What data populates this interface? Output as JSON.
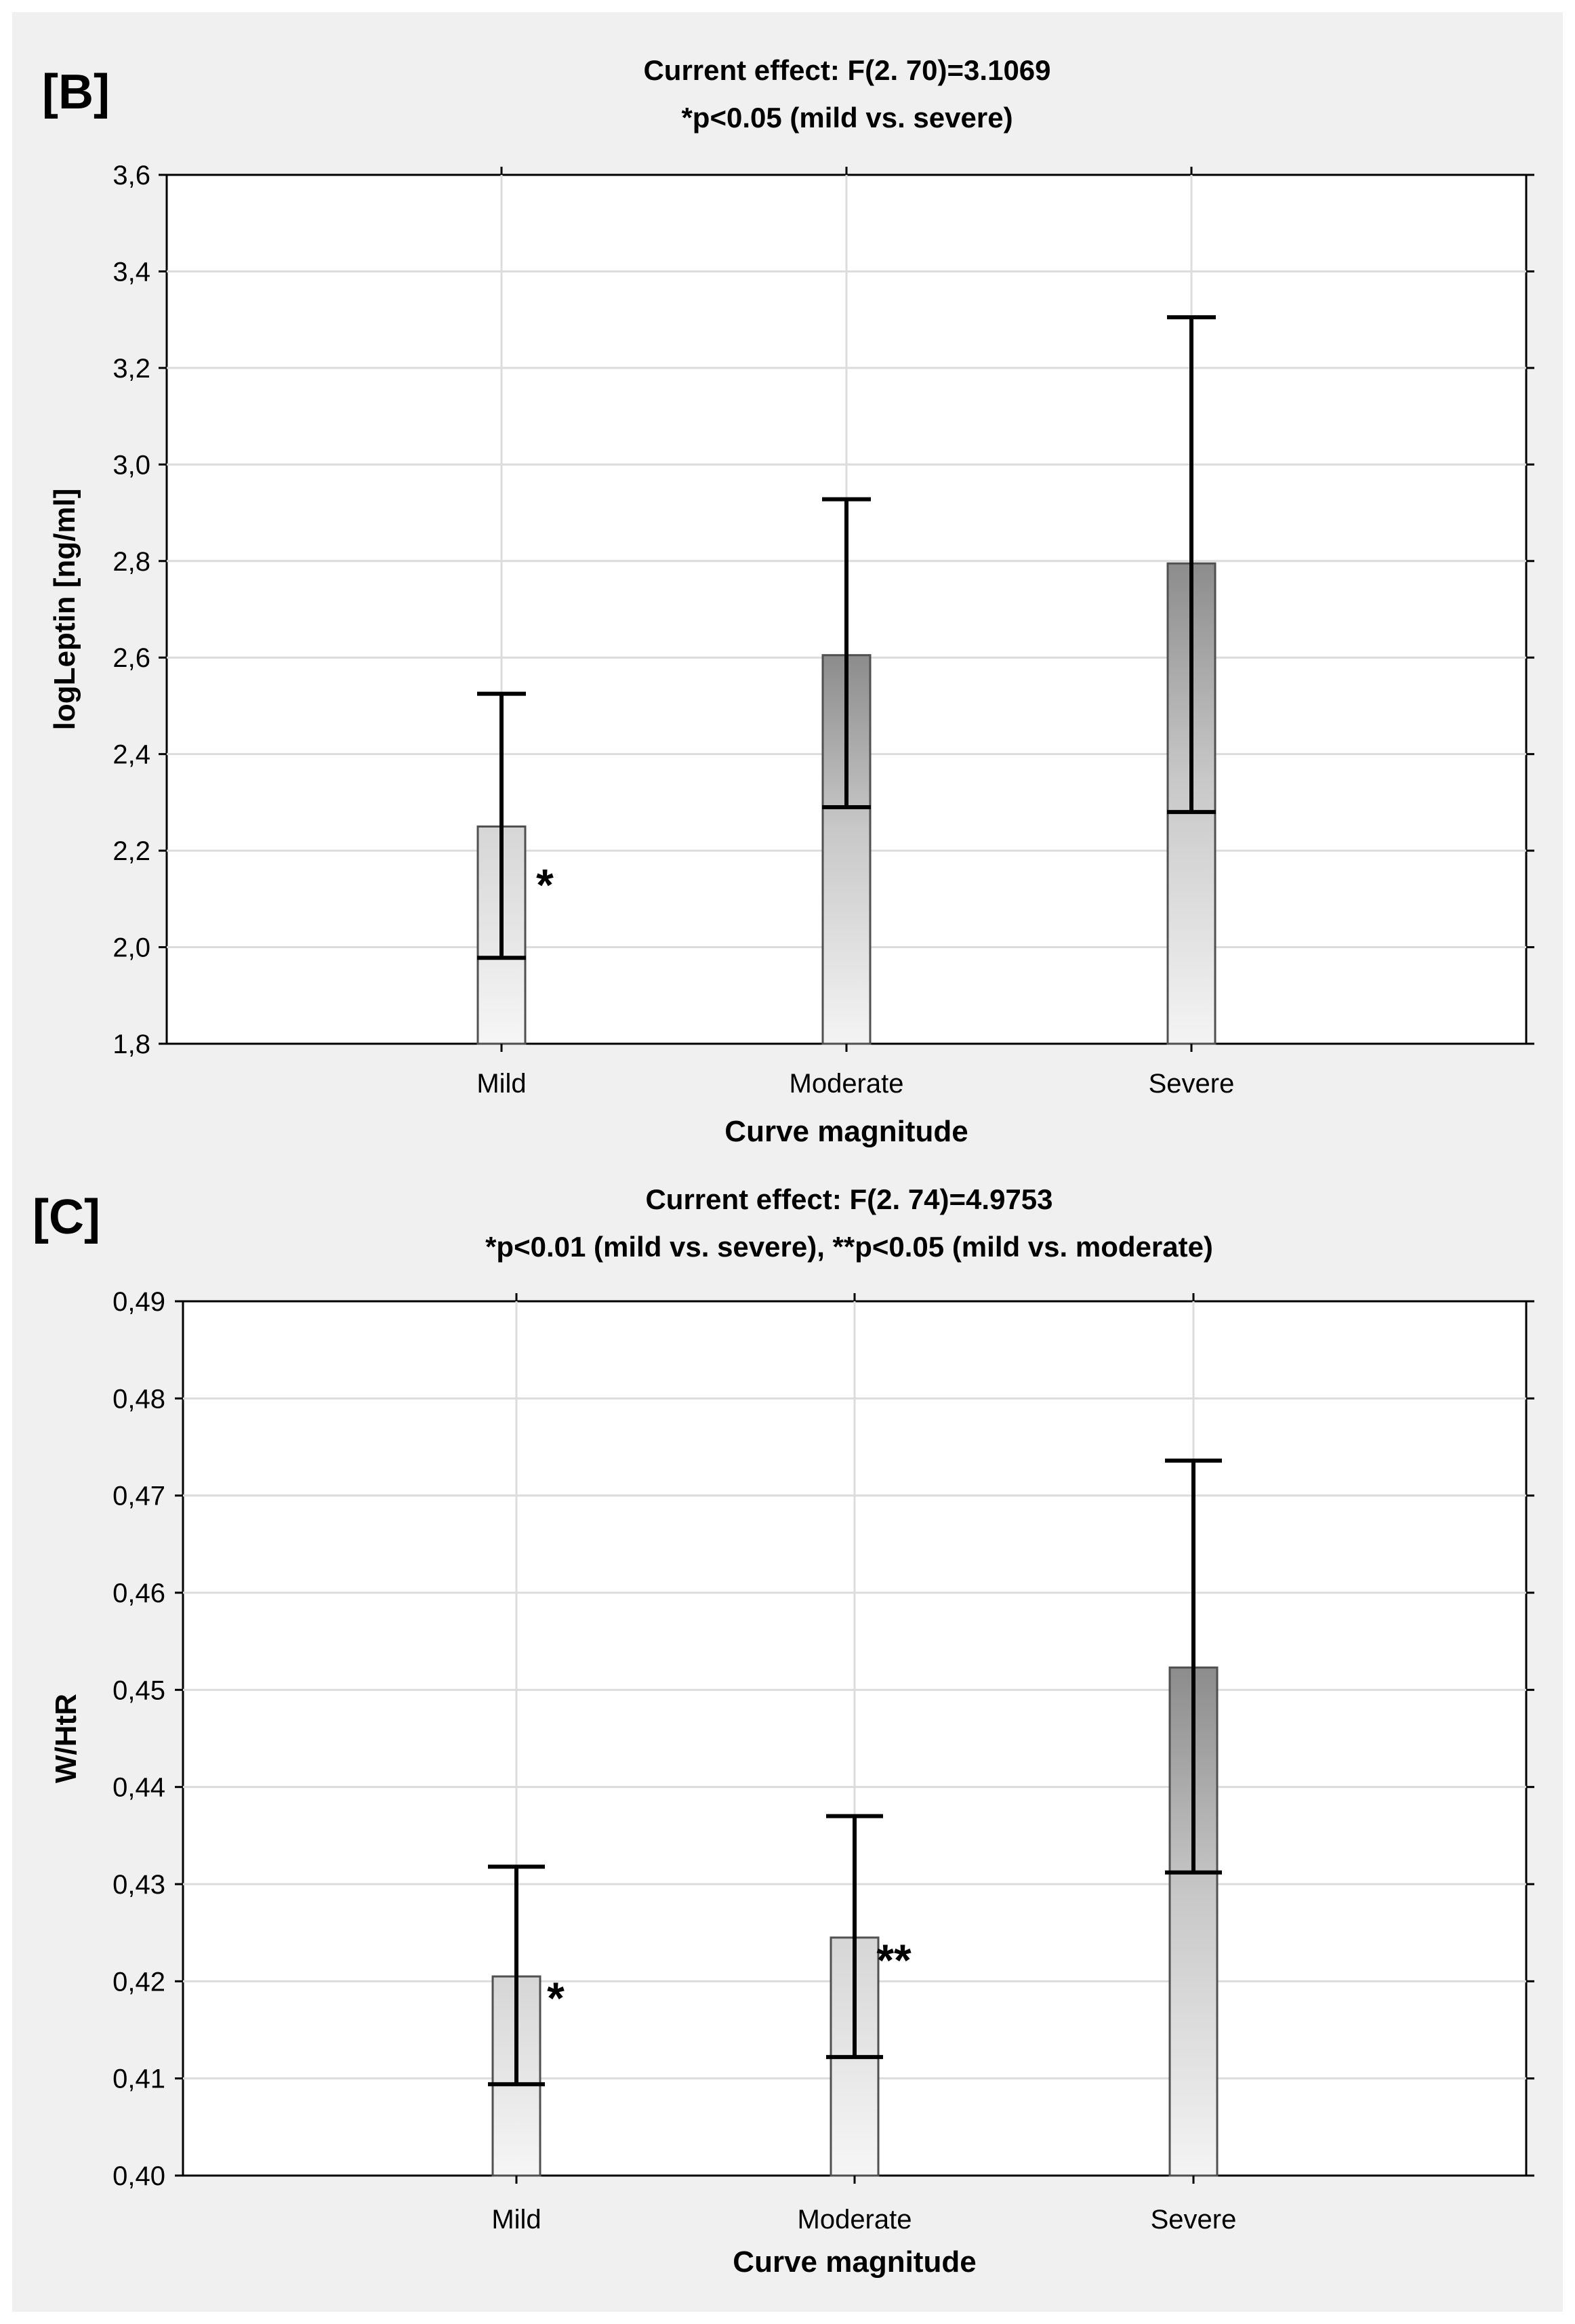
{
  "chart_data": [
    {
      "panel": "[B]",
      "type": "bar",
      "title": "Current effect: F(2. 70)=3.1069",
      "subtitle": "*p<0.05 (mild vs. severe)",
      "xlabel": "Curve magnitude",
      "ylabel": "logLeptin [ng/ml]",
      "categories": [
        "Mild",
        "Moderate",
        "Severe"
      ],
      "values": [
        2.25,
        2.605,
        2.795
      ],
      "ci_lower": [
        1.978,
        2.29,
        2.28
      ],
      "ci_upper": [
        2.525,
        2.928,
        3.305
      ],
      "significance": [
        "*",
        "",
        ""
      ],
      "ylim": [
        1.8,
        3.6
      ],
      "yticks": [
        1.8,
        2.0,
        2.2,
        2.4,
        2.6,
        2.8,
        3.0,
        3.2,
        3.4,
        3.6
      ],
      "ytick_labels": [
        "1,8",
        "2,0",
        "2,2",
        "2,4",
        "2,6",
        "2,8",
        "3,0",
        "3,2",
        "3,4",
        "3,6"
      ],
      "grid": true
    },
    {
      "panel": "[C]",
      "type": "bar",
      "title": "Current effect: F(2. 74)=4.9753",
      "subtitle": "*p<0.01 (mild vs. severe), **p<0.05 (mild vs. moderate)",
      "xlabel": "Curve magnitude",
      "ylabel": "W/HtR",
      "categories": [
        "Mild",
        "Moderate",
        "Severe"
      ],
      "values": [
        0.4205,
        0.4245,
        0.4523
      ],
      "ci_lower": [
        0.4094,
        0.4122,
        0.4312
      ],
      "ci_upper": [
        0.4318,
        0.437,
        0.4736
      ],
      "significance": [
        "*",
        "**",
        ""
      ],
      "ylim": [
        0.4,
        0.49
      ],
      "yticks": [
        0.4,
        0.41,
        0.42,
        0.43,
        0.44,
        0.45,
        0.46,
        0.47,
        0.48,
        0.49
      ],
      "ytick_labels": [
        "0,40",
        "0,41",
        "0,42",
        "0,43",
        "0,44",
        "0,45",
        "0,46",
        "0,47",
        "0,48",
        "0,49"
      ],
      "grid": true
    }
  ]
}
